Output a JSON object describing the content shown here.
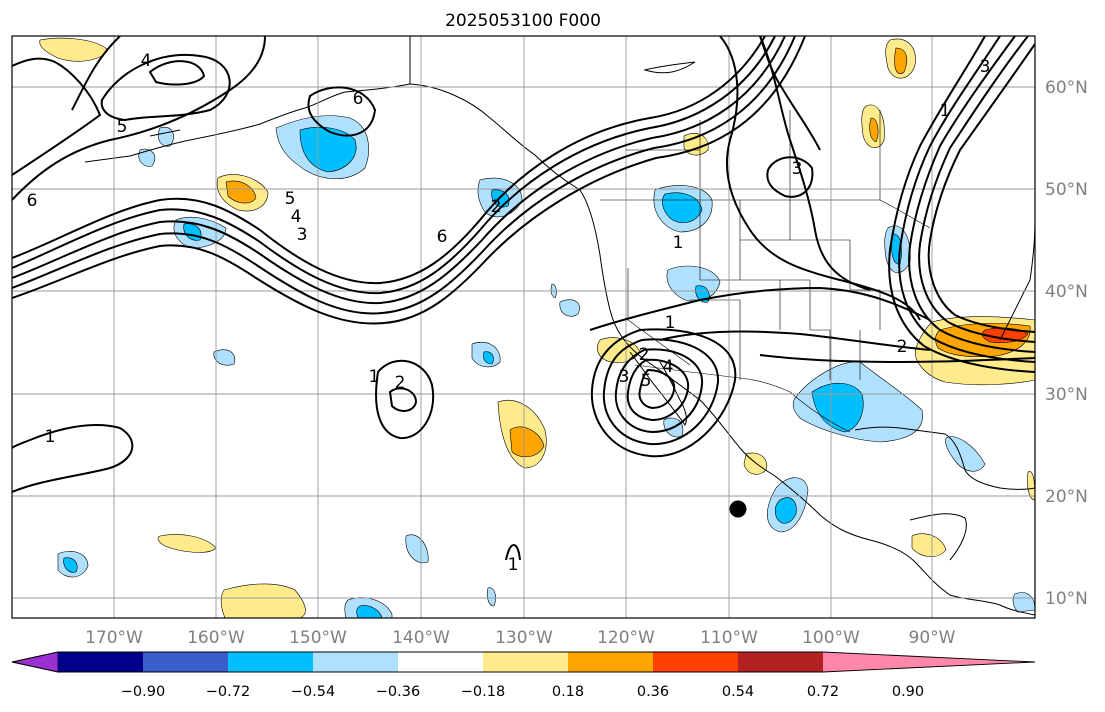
{
  "title": "2025053100 F000",
  "map": {
    "lon_labels": [
      "170°W",
      "160°W",
      "150°W",
      "140°W",
      "130°W",
      "120°W",
      "110°W",
      "100°W",
      "90°W"
    ],
    "lat_labels": [
      "60°N",
      "50°N",
      "40°N",
      "30°N",
      "20°N",
      "10°N"
    ],
    "contour_labels": [
      "1",
      "2",
      "3",
      "4",
      "5",
      "6"
    ]
  },
  "colorbar": {
    "tick_labels": [
      "−0.90",
      "−0.72",
      "−0.54",
      "−0.36",
      "−0.18",
      "0.18",
      "0.36",
      "0.54",
      "0.72",
      "0.90"
    ],
    "colors": [
      "#9b30d0",
      "#00008b",
      "#3a5fcd",
      "#00bfff",
      "#afe1ff",
      "#ffffff",
      "#ffea8c",
      "#ffa500",
      "#ff4000",
      "#b22222",
      "#ff88aa"
    ]
  },
  "shading_colors": {
    "neg_light": "#afe1ff",
    "neg_mid": "#00bfff",
    "pos_light": "#ffea8c",
    "pos_mid": "#ffa500"
  },
  "marker": {
    "type": "storm-center-dot",
    "color": "#000000"
  }
}
